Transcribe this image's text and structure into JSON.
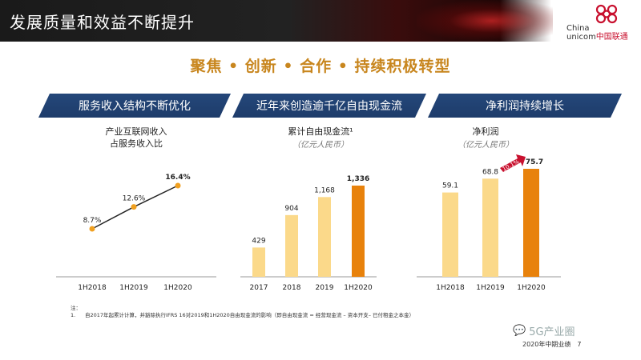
{
  "header": {
    "title": "发展质量和效益不断提升"
  },
  "logo": {
    "line1": "China",
    "line2": "unicom",
    "cn": "中国联通"
  },
  "subtitle": "聚焦 • 创新 • 合作 • 持续积极转型",
  "panels": {
    "p1": {
      "banner": "服务收入结构不断优化",
      "title1": "产业互联网收入",
      "title2": "占服务收入比"
    },
    "p2": {
      "banner": "近年来创造逾千亿自由现金流",
      "title": "累计自由现金流¹",
      "unit": "（亿元人民币）"
    },
    "p3": {
      "banner": "净利润持续增长",
      "title": "净利润",
      "unit": "（亿元人民币）",
      "growth_badge": "10.1%"
    }
  },
  "chart_data": [
    {
      "type": "line",
      "categories": [
        "1H2018",
        "1H2019",
        "1H2020"
      ],
      "values": [
        8.7,
        12.6,
        16.4
      ],
      "labels": [
        "8.7%",
        "12.6%",
        "16.4%"
      ]
    },
    {
      "type": "bar",
      "categories": [
        "2017",
        "2018",
        "2019",
        "1H2020"
      ],
      "values": [
        429,
        904,
        1168,
        1336
      ],
      "labels": [
        "429",
        "904",
        "1,168",
        "1,336"
      ]
    },
    {
      "type": "bar",
      "categories": [
        "1H2018",
        "1H2019",
        "1H2020"
      ],
      "values": [
        59.1,
        68.8,
        75.7
      ],
      "labels": [
        "59.1",
        "68.8",
        "75.7"
      ]
    }
  ],
  "colors": {
    "bar_light": "#fbd98a",
    "bar_dark": "#e8820c",
    "line": "#f0a020",
    "banner": "#1f3d6c",
    "accent": "#c8102e"
  },
  "note": {
    "label": "注：",
    "num": "1.",
    "text": "自2017年起累计计算，并豁除执行IFRS 16对2019和1H2020自由现金流的影响（即自由现金流 = 经营现金流 – 资本开支– 已付租金之本金）"
  },
  "footer": {
    "text": "2020年中期业绩",
    "page": "7"
  },
  "watermark": "5G产业圈"
}
